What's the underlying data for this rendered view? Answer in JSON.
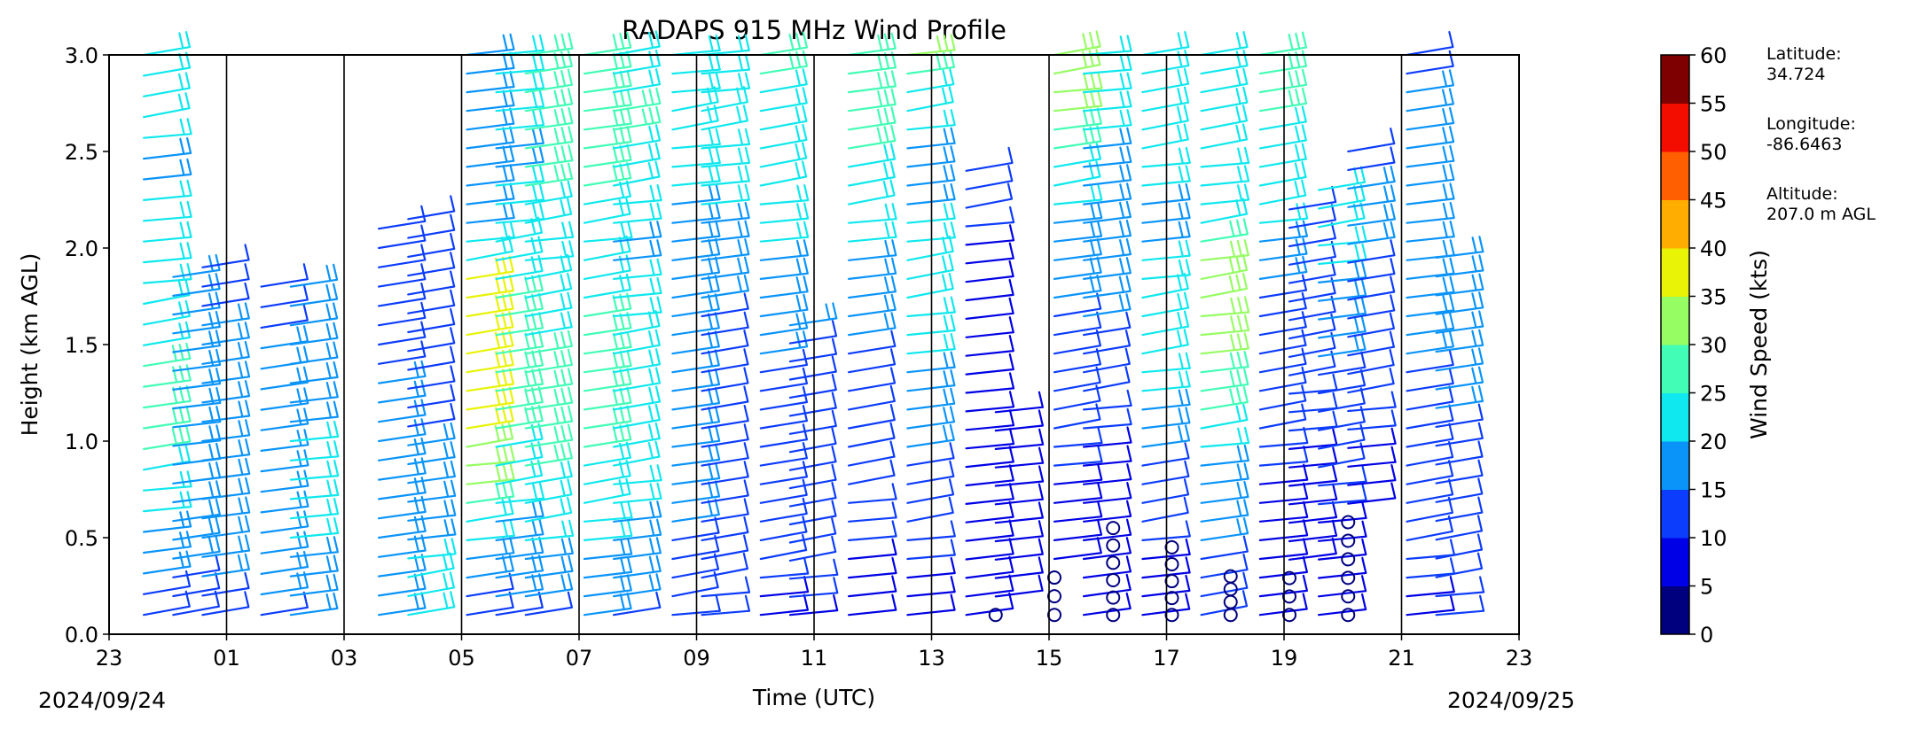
{
  "chart_data": {
    "type": "wind_barb_profile",
    "title": "RADAPS 915 MHz Wind Profile",
    "xlabel": "Time (UTC)",
    "ylabel": "Height (km AGL)",
    "x_tick_labels": [
      "23",
      "01",
      "03",
      "05",
      "07",
      "09",
      "11",
      "13",
      "15",
      "17",
      "19",
      "21",
      "23"
    ],
    "x_range_hours": [
      0,
      24
    ],
    "ylim": [
      0,
      3.0
    ],
    "y_ticks": [
      0.0,
      0.5,
      1.0,
      1.5,
      2.0,
      2.5,
      3.0
    ],
    "y_tick_labels": [
      "0.0",
      "0.5",
      "1.0",
      "1.5",
      "2.0",
      "2.5",
      "3.0"
    ],
    "start_date": "2024/09/24",
    "end_date": "2024/09/25",
    "colorbar": {
      "label": "Wind Speed (kts)",
      "ticks": [
        0,
        5,
        10,
        15,
        20,
        25,
        30,
        35,
        40,
        45,
        50,
        55,
        60
      ],
      "tick_labels": [
        "0",
        "5",
        "10",
        "15",
        "20",
        "25",
        "30",
        "35",
        "40",
        "45",
        "50",
        "55",
        "60"
      ],
      "colors": [
        "#00007f",
        "#0000e6",
        "#0c3cfc",
        "#0a94fa",
        "#0ee8ee",
        "#41fdb5",
        "#96fd63",
        "#e9f306",
        "#ffae00",
        "#ff5f00",
        "#f30c00",
        "#7f0000"
      ]
    },
    "profiles": [
      {
        "t": 0.5,
        "top": 3.0,
        "spd": [
          12,
          13,
          15,
          17,
          18,
          20,
          21,
          23,
          25,
          26,
          27,
          27,
          25,
          24,
          23,
          22,
          21,
          20,
          20,
          21,
          20,
          19,
          18,
          21,
          22,
          23,
          24,
          24
        ]
      },
      {
        "t": 1.0,
        "top": 1.85,
        "spd": [
          12,
          13,
          14,
          15,
          15,
          16,
          17,
          17,
          17,
          18,
          18,
          18,
          17,
          17,
          16,
          16,
          15,
          15,
          15
        ]
      },
      {
        "t": 1.5,
        "top": 1.9,
        "spd": [
          13,
          14,
          15,
          16,
          16,
          17,
          17,
          17,
          17,
          17,
          17,
          16,
          16,
          15,
          15,
          15,
          14,
          14,
          14
        ]
      },
      {
        "t": 2.5,
        "top": 1.8,
        "spd": [
          14,
          15,
          15,
          16,
          16,
          17,
          17,
          17,
          17,
          16,
          16,
          15,
          15,
          15,
          14,
          14,
          14
        ]
      },
      {
        "t": 3.0,
        "top": 1.8,
        "spd": [
          16,
          17,
          18,
          19,
          20,
          20,
          21,
          21,
          21,
          20,
          19,
          18,
          17,
          16,
          16,
          15,
          15,
          15
        ]
      },
      {
        "t": 4.5,
        "top": 2.1,
        "spd": [
          15,
          15,
          16,
          16,
          16,
          16,
          16,
          16,
          15,
          15,
          15,
          15,
          15,
          14,
          14,
          14,
          14,
          14,
          14,
          14,
          14
        ]
      },
      {
        "t": 5.0,
        "top": 2.15,
        "spd": [
          24,
          23,
          22,
          20,
          19,
          18,
          17,
          16,
          15,
          15,
          14,
          14,
          14,
          13,
          13,
          13,
          13,
          13,
          13,
          13,
          13,
          13
        ]
      },
      {
        "t": 6.0,
        "top": 3.0,
        "spd": [
          14,
          14,
          15,
          17,
          20,
          24,
          27,
          30,
          32,
          34,
          36,
          37,
          37,
          36,
          35,
          35,
          36,
          37,
          36,
          22,
          20,
          19,
          18,
          18,
          17,
          17,
          17,
          18,
          18,
          18,
          18
        ]
      },
      {
        "t": 6.5,
        "top": 3.0,
        "spd": [
          14,
          15,
          15,
          16,
          17,
          18,
          20,
          22,
          23,
          24,
          25,
          25,
          26,
          26,
          26,
          26,
          25,
          25,
          24,
          23,
          22,
          21,
          20,
          20,
          19,
          19,
          20,
          20,
          21,
          21,
          20
        ]
      },
      {
        "t": 7.0,
        "top": 3.0,
        "spd": [
          14,
          15,
          16,
          18,
          20,
          22,
          23,
          24,
          25,
          26,
          26,
          26,
          26,
          25,
          25,
          24,
          23,
          22,
          22,
          21,
          20,
          22,
          24,
          26,
          27,
          27,
          27,
          26,
          25,
          25,
          27
        ]
      },
      {
        "t": 8.0,
        "top": 3.0,
        "spd": [
          16,
          17,
          18,
          19,
          20,
          21,
          22,
          23,
          24,
          25,
          26,
          26,
          26,
          27,
          27,
          26,
          25,
          24,
          23,
          22,
          21,
          22,
          24,
          25,
          26,
          27,
          28,
          28,
          27,
          26,
          25
        ]
      },
      {
        "t": 8.5,
        "top": 3.0,
        "spd": [
          14,
          15,
          16,
          17,
          18,
          19,
          20,
          21,
          22,
          23,
          23,
          24,
          24,
          24,
          23,
          22,
          21,
          20,
          20,
          19,
          19,
          20,
          21,
          22,
          23,
          24,
          25,
          25,
          24,
          24,
          23
        ]
      },
      {
        "t": 9.5,
        "top": 3.0,
        "spd": [
          10,
          11,
          12,
          13,
          14,
          15,
          16,
          17,
          17,
          17,
          16,
          16,
          16,
          15,
          15,
          15,
          15,
          15,
          16,
          17,
          18,
          19,
          19,
          20,
          21,
          21,
          22,
          22,
          21,
          21,
          20
        ]
      },
      {
        "t": 10.0,
        "top": 3.0,
        "spd": [
          10,
          10,
          11,
          12,
          13,
          14,
          14,
          14,
          14,
          14,
          14,
          13,
          13,
          13,
          13,
          14,
          14,
          15,
          16,
          17,
          18,
          19,
          20,
          20,
          21,
          21,
          22,
          22,
          21,
          21,
          20
        ]
      },
      {
        "t": 11.0,
        "top": 3.0,
        "spd": [
          8,
          9,
          10,
          11,
          12,
          13,
          13,
          14,
          14,
          14,
          14,
          14,
          14,
          14,
          15,
          15,
          16,
          17,
          18,
          19,
          20,
          20,
          21,
          22,
          22,
          23,
          23,
          24,
          24,
          25,
          25
        ]
      },
      {
        "t": 11.5,
        "top": 1.6,
        "spd": [
          9,
          10,
          10,
          11,
          11,
          12,
          12,
          12,
          12,
          12,
          13,
          13,
          13,
          13,
          14,
          14,
          15
        ]
      },
      {
        "t": 12.5,
        "top": 3.0,
        "spd": [
          8,
          8,
          9,
          9,
          10,
          10,
          10,
          11,
          11,
          11,
          12,
          12,
          13,
          13,
          14,
          15,
          16,
          17,
          18,
          19,
          20,
          21,
          22,
          23,
          24,
          25,
          26,
          27,
          28,
          28,
          27
        ]
      },
      {
        "t": 13.5,
        "top": 3.0,
        "spd": [
          8,
          9,
          9,
          10,
          10,
          11,
          12,
          13,
          14,
          15,
          16,
          17,
          18,
          19,
          20,
          20,
          21,
          22,
          22,
          22,
          21,
          20,
          19,
          18,
          18,
          19,
          20,
          22,
          24,
          27,
          30
        ]
      },
      {
        "t": 14.5,
        "top": 2.4,
        "spd": [
          5,
          6,
          6,
          7,
          7,
          7,
          8,
          8,
          8,
          9,
          9,
          9,
          9,
          8,
          8,
          8,
          7,
          7,
          7,
          8,
          9,
          10,
          11,
          12,
          13
        ]
      },
      {
        "t": 15.0,
        "top": 1.15,
        "spd": [
          0,
          6,
          7,
          7,
          8,
          8,
          8,
          9,
          9,
          9,
          8,
          8
        ]
      },
      {
        "t": 16.0,
        "top": 3.0,
        "spd": [
          0,
          0,
          0,
          6,
          7,
          8,
          8,
          9,
          10,
          10,
          11,
          11,
          12,
          13,
          13,
          14,
          14,
          15,
          16,
          17,
          18,
          19,
          20,
          22,
          24,
          26,
          28,
          30,
          32,
          33,
          34
        ]
      },
      {
        "t": 16.5,
        "top": 3.0,
        "spd": [
          5,
          5,
          6,
          6,
          7,
          7,
          8,
          8,
          9,
          9,
          10,
          10,
          11,
          12,
          13,
          14,
          15,
          16,
          17,
          17,
          17,
          17,
          18,
          18,
          19,
          19,
          20,
          20,
          21,
          21,
          21
        ]
      },
      {
        "t": 17.0,
        "top": 0.55,
        "spd": [
          0,
          0,
          0,
          0,
          0,
          0
        ]
      },
      {
        "t": 17.5,
        "top": 3.0,
        "spd": [
          6,
          7,
          8,
          9,
          10,
          11,
          12,
          13,
          14,
          16,
          18,
          19,
          20,
          21,
          22,
          23,
          23,
          22,
          21,
          20,
          19,
          19,
          19,
          20,
          21,
          22,
          22,
          23,
          23,
          24,
          24
        ]
      },
      {
        "t": 18.0,
        "top": 0.45,
        "spd": [
          0,
          0,
          0,
          0,
          0
        ]
      },
      {
        "t": 18.5,
        "top": 3.0,
        "spd": [
          11,
          12,
          13,
          14,
          15,
          16,
          17,
          18,
          19,
          21,
          23,
          25,
          27,
          29,
          30,
          31,
          32,
          33,
          33,
          30,
          25,
          22,
          20,
          20,
          21,
          22,
          22,
          23,
          23,
          24,
          24
        ]
      },
      {
        "t": 19.0,
        "top": 0.3,
        "spd": [
          0,
          0,
          0,
          0
        ]
      },
      {
        "t": 19.5,
        "top": 3.0,
        "spd": [
          6,
          7,
          7,
          8,
          8,
          9,
          9,
          9,
          10,
          10,
          11,
          11,
          12,
          12,
          12,
          13,
          13,
          14,
          15,
          16,
          18,
          20,
          22,
          23,
          24,
          24,
          24,
          25,
          25,
          25,
          25
        ]
      },
      {
        "t": 20.0,
        "top": 2.2,
        "spd": [
          0,
          0,
          0,
          6,
          7,
          7,
          8,
          8,
          9,
          9,
          10,
          10,
          10,
          11,
          11,
          11,
          12,
          12,
          12,
          13,
          13,
          13,
          14
        ]
      },
      {
        "t": 20.5,
        "top": 2.3,
        "spd": [
          7,
          7,
          8,
          8,
          9,
          9,
          10,
          10,
          11,
          11,
          12,
          12,
          13,
          14,
          15,
          16,
          17,
          18,
          19,
          20,
          21,
          22,
          23,
          24
        ]
      },
      {
        "t": 21.0,
        "top": 2.5,
        "spd": [
          0,
          0,
          0,
          0,
          0,
          0,
          7,
          8,
          9,
          9,
          10,
          10,
          11,
          11,
          12,
          12,
          13,
          13,
          14,
          14,
          15,
          16,
          16,
          15,
          14,
          13
        ]
      },
      {
        "t": 22.0,
        "top": 3.0,
        "spd": [
          8,
          9,
          10,
          10,
          11,
          11,
          12,
          12,
          12,
          13,
          13,
          13,
          14,
          14,
          15,
          16,
          17,
          18,
          18,
          19,
          19,
          19,
          18,
          17,
          17,
          16,
          16,
          15,
          15,
          14,
          13
        ]
      },
      {
        "t": 22.5,
        "top": 1.95,
        "spd": [
          10,
          10,
          11,
          11,
          11,
          12,
          12,
          13,
          13,
          14,
          14,
          15,
          15,
          15,
          16,
          16,
          16,
          17,
          17,
          17
        ]
      }
    ]
  },
  "station": {
    "latitude_label": "Latitude:",
    "latitude_value": "34.724",
    "longitude_label": "Longitude:",
    "longitude_value": "-86.6463",
    "altitude_label": "Altitude:",
    "altitude_value": "207.0 m AGL"
  }
}
